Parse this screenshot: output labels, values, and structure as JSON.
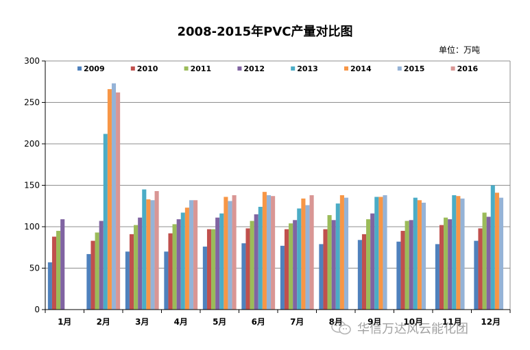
{
  "chart_data": {
    "type": "bar",
    "title": "2008-2015年PVC产量对比图",
    "unit": "单位：万吨",
    "categories": [
      "1月",
      "2月",
      "3月",
      "4月",
      "5月",
      "6月",
      "7月",
      "8月",
      "9月",
      "10月",
      "11月",
      "12月"
    ],
    "ylim": [
      0,
      300
    ],
    "yticks": [
      0,
      50,
      100,
      150,
      200,
      250,
      300
    ],
    "grid": true,
    "legend_position": "top",
    "series": [
      {
        "name": "2009",
        "color": "#4F81BD",
        "values": [
          57,
          67,
          70,
          70,
          76,
          80,
          77,
          79,
          84,
          82,
          79,
          83
        ]
      },
      {
        "name": "2010",
        "color": "#C0504D",
        "values": [
          88,
          83,
          91,
          92,
          97,
          98,
          97,
          97,
          91,
          95,
          102,
          98
        ]
      },
      {
        "name": "2011",
        "color": "#9BBB59",
        "values": [
          95,
          93,
          102,
          103,
          97,
          107,
          104,
          114,
          109,
          107,
          111,
          117
        ]
      },
      {
        "name": "2012",
        "color": "#8064A2",
        "values": [
          109,
          107,
          111,
          109,
          111,
          115,
          108,
          108,
          116,
          108,
          109,
          112
        ]
      },
      {
        "name": "2013",
        "color": "#4BACC6",
        "values": [
          null,
          212,
          145,
          117,
          116,
          124,
          122,
          128,
          136,
          135,
          138,
          150
        ]
      },
      {
        "name": "2014",
        "color": "#F79646",
        "values": [
          null,
          266,
          133,
          123,
          136,
          142,
          134,
          138,
          136,
          132,
          137,
          141
        ]
      },
      {
        "name": "2015",
        "color": "#95B3D7",
        "values": [
          null,
          273,
          132,
          132,
          131,
          138,
          126,
          135,
          138,
          129,
          134,
          135
        ]
      },
      {
        "name": "2016",
        "color": "#D99694",
        "values": [
          null,
          262,
          143,
          132,
          138,
          137,
          138,
          null,
          null,
          null,
          null,
          null
        ]
      }
    ]
  },
  "watermark": {
    "text": "华信万达风云能化团",
    "icon": "wechat-icon"
  }
}
